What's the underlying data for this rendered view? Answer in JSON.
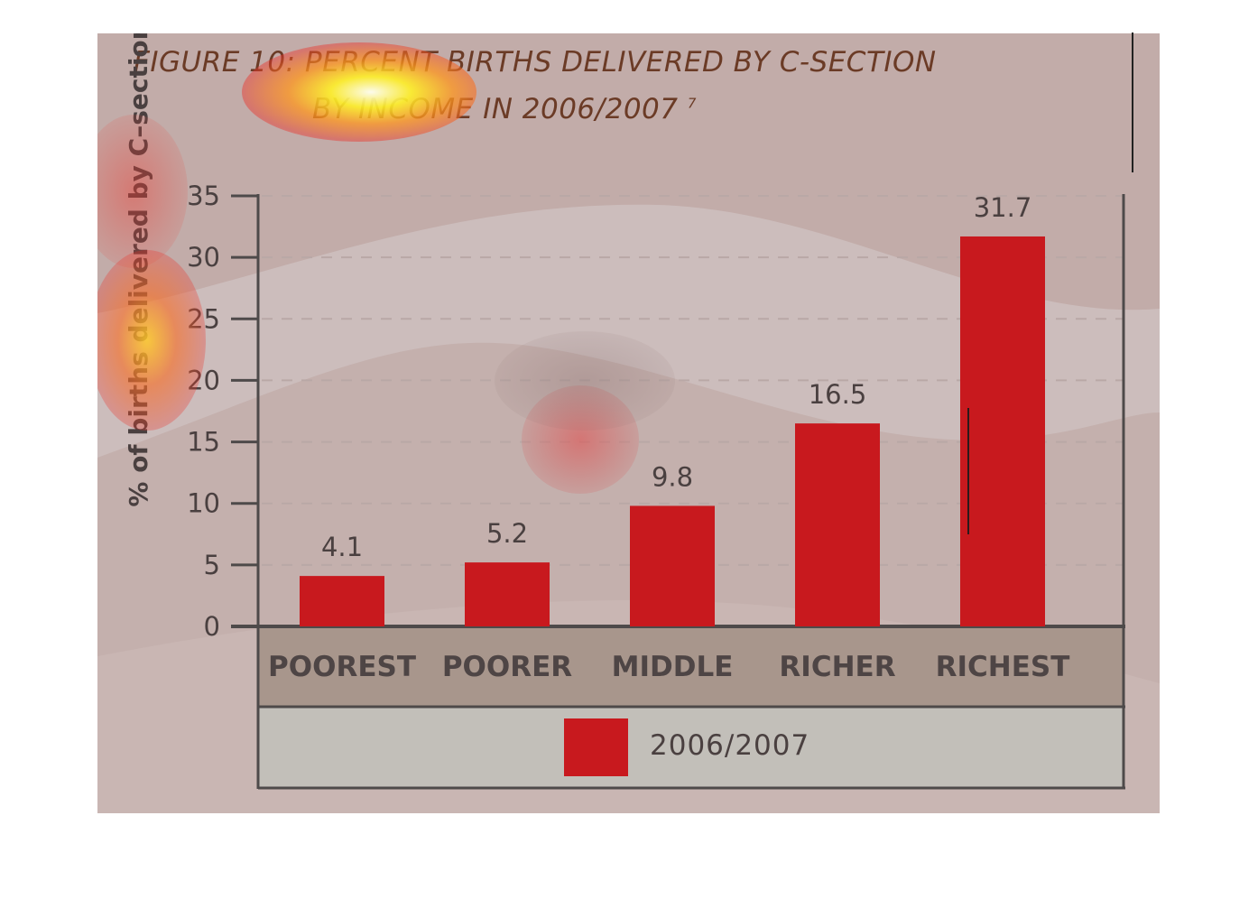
{
  "chart_data": {
    "type": "bar",
    "title": "FIGURE 10: PERCENT BIRTHS DELIVERED BY C-SECTION",
    "subtitle": "BY INCOME IN 2006/2007",
    "subtitle_note": "7",
    "ylabel": "% of births delivered by C–section",
    "xlabel": "",
    "categories": [
      "POOREST",
      "POORER",
      "MIDDLE",
      "RICHER",
      "RICHEST"
    ],
    "series": [
      {
        "name": "2006/2007",
        "values": [
          4.1,
          5.2,
          9.8,
          16.5,
          31.7
        ],
        "color": "#c8191e"
      }
    ],
    "data_labels": [
      "4.1",
      "5.2",
      "9.8",
      "16.5",
      "31.7"
    ],
    "ylim": [
      0,
      35
    ],
    "yticks": [
      "0",
      "5",
      "10",
      "15",
      "20",
      "25",
      "30",
      "35"
    ],
    "grid": true,
    "legend": {
      "placement": "bottom",
      "entries": [
        "2006/2007"
      ]
    }
  }
}
